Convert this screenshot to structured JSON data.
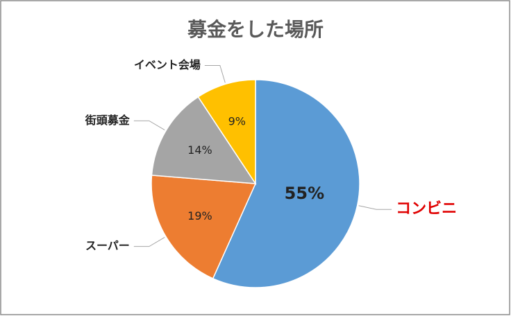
{
  "chart_data": {
    "type": "pie",
    "title": "募金をした場所",
    "categories": [
      "コンビニ",
      "スーパー",
      "街頭募金",
      "イベント会場"
    ],
    "values": [
      55,
      19,
      14,
      9
    ],
    "value_labels": [
      "55%",
      "19%",
      "14%",
      "9%"
    ],
    "colors": [
      "#5b9bd5",
      "#ed7d31",
      "#a5a5a5",
      "#ffc000"
    ]
  }
}
